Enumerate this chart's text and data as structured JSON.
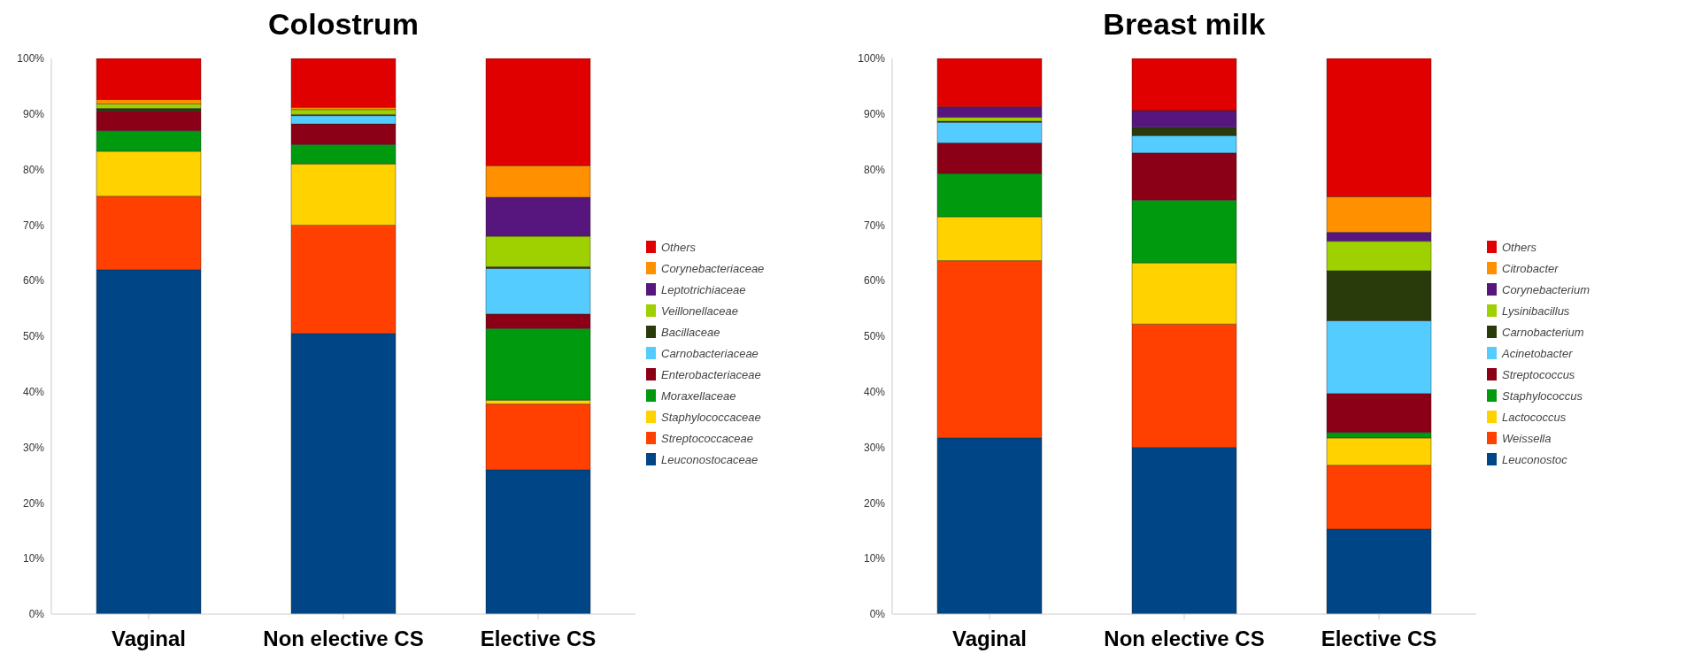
{
  "chart_data": [
    {
      "type": "bar",
      "title": "Colostrum",
      "stacked": true,
      "categories": [
        "Vaginal",
        "Non elective CS",
        "Elective CS"
      ],
      "ylim": [
        0,
        100
      ],
      "yticks": [
        {
          "value": 0,
          "label": "0%"
        },
        {
          "value": 10,
          "label": "10%"
        },
        {
          "value": 20,
          "label": "20%"
        },
        {
          "value": 30,
          "label": "30%"
        },
        {
          "value": 40,
          "label": "40%"
        },
        {
          "value": 50,
          "label": "50%"
        },
        {
          "value": 60,
          "label": "60%"
        },
        {
          "value": 70,
          "label": "70%"
        },
        {
          "value": 80,
          "label": "80%"
        },
        {
          "value": 90,
          "label": "90%"
        },
        {
          "value": 100,
          "label": "100%"
        }
      ],
      "legend": "right",
      "series": [
        {
          "name": "Leuconostocaceae",
          "color": "#004586",
          "values": [
            62,
            50.5,
            26
          ]
        },
        {
          "name": "Streptococcaceae",
          "color": "#ff4000",
          "values": [
            13.2,
            19.5,
            11.8
          ]
        },
        {
          "name": "Staphylococcaceae",
          "color": "#ffd200",
          "values": [
            8.1,
            11,
            0.7
          ]
        },
        {
          "name": "Moraxellaceae",
          "color": "#009a0f",
          "values": [
            3.7,
            3.5,
            12.9
          ]
        },
        {
          "name": "Enterobacteriaceae",
          "color": "#8b0017",
          "values": [
            3.5,
            3.7,
            2.6
          ]
        },
        {
          "name": "Carnobacteriaceae",
          "color": "#55ccff",
          "values": [
            0,
            1.5,
            8.2
          ]
        },
        {
          "name": "Bacillaceae",
          "color": "#2a3b0b",
          "values": [
            0.5,
            0.2,
            0.3
          ]
        },
        {
          "name": "Veillonellaceae",
          "color": "#9fd000",
          "values": [
            0.8,
            0.9,
            5.5
          ]
        },
        {
          "name": "Leptotrichiaceae",
          "color": "#57167e",
          "values": [
            0,
            0,
            7
          ]
        },
        {
          "name": "Corynebacteriaceae",
          "color": "#ff9000",
          "values": [
            0.8,
            0.4,
            5.7
          ]
        },
        {
          "name": "Others",
          "color": "#e00000",
          "values": [
            7.4,
            8.8,
            19.3
          ]
        }
      ]
    },
    {
      "type": "bar",
      "title": "Breast milk",
      "stacked": true,
      "categories": [
        "Vaginal",
        "Non elective CS",
        "Elective CS"
      ],
      "ylim": [
        0,
        100
      ],
      "yticks": [
        {
          "value": 0,
          "label": "0%"
        },
        {
          "value": 10,
          "label": "10%"
        },
        {
          "value": 20,
          "label": "20%"
        },
        {
          "value": 30,
          "label": "30%"
        },
        {
          "value": 40,
          "label": "40%"
        },
        {
          "value": 50,
          "label": "50%"
        },
        {
          "value": 60,
          "label": "60%"
        },
        {
          "value": 70,
          "label": "70%"
        },
        {
          "value": 80,
          "label": "80%"
        },
        {
          "value": 90,
          "label": "90%"
        },
        {
          "value": 100,
          "label": "100%"
        }
      ],
      "legend": "right",
      "series": [
        {
          "name": "Leuconostoc",
          "color": "#004586",
          "values": [
            31.7,
            30,
            15.3
          ]
        },
        {
          "name": "Weissella",
          "color": "#ff4000",
          "values": [
            31.9,
            22.2,
            11.5
          ]
        },
        {
          "name": "Lactococcus",
          "color": "#ffd200",
          "values": [
            7.9,
            11,
            4.9
          ]
        },
        {
          "name": "Staphylococcus",
          "color": "#009a0f",
          "values": [
            7.8,
            11.3,
            1
          ]
        },
        {
          "name": "Streptococcus",
          "color": "#8b0017",
          "values": [
            5.5,
            8.5,
            7
          ]
        },
        {
          "name": "Acinetobacter",
          "color": "#55ccff",
          "values": [
            3.7,
            3.1,
            13.1
          ]
        },
        {
          "name": "Carnobacterium",
          "color": "#2a3b0b",
          "values": [
            0.2,
            1.5,
            9
          ]
        },
        {
          "name": "Lysinibacillus",
          "color": "#9fd000",
          "values": [
            0.7,
            0,
            5.3
          ]
        },
        {
          "name": "Corynebacterium",
          "color": "#57167e",
          "values": [
            1.9,
            3,
            1.6
          ]
        },
        {
          "name": "Citrobacter",
          "color": "#ff9000",
          "values": [
            0,
            0,
            6.4
          ]
        },
        {
          "name": "Others",
          "color": "#e00000",
          "values": [
            8.7,
            9.4,
            24.9
          ]
        }
      ]
    }
  ]
}
